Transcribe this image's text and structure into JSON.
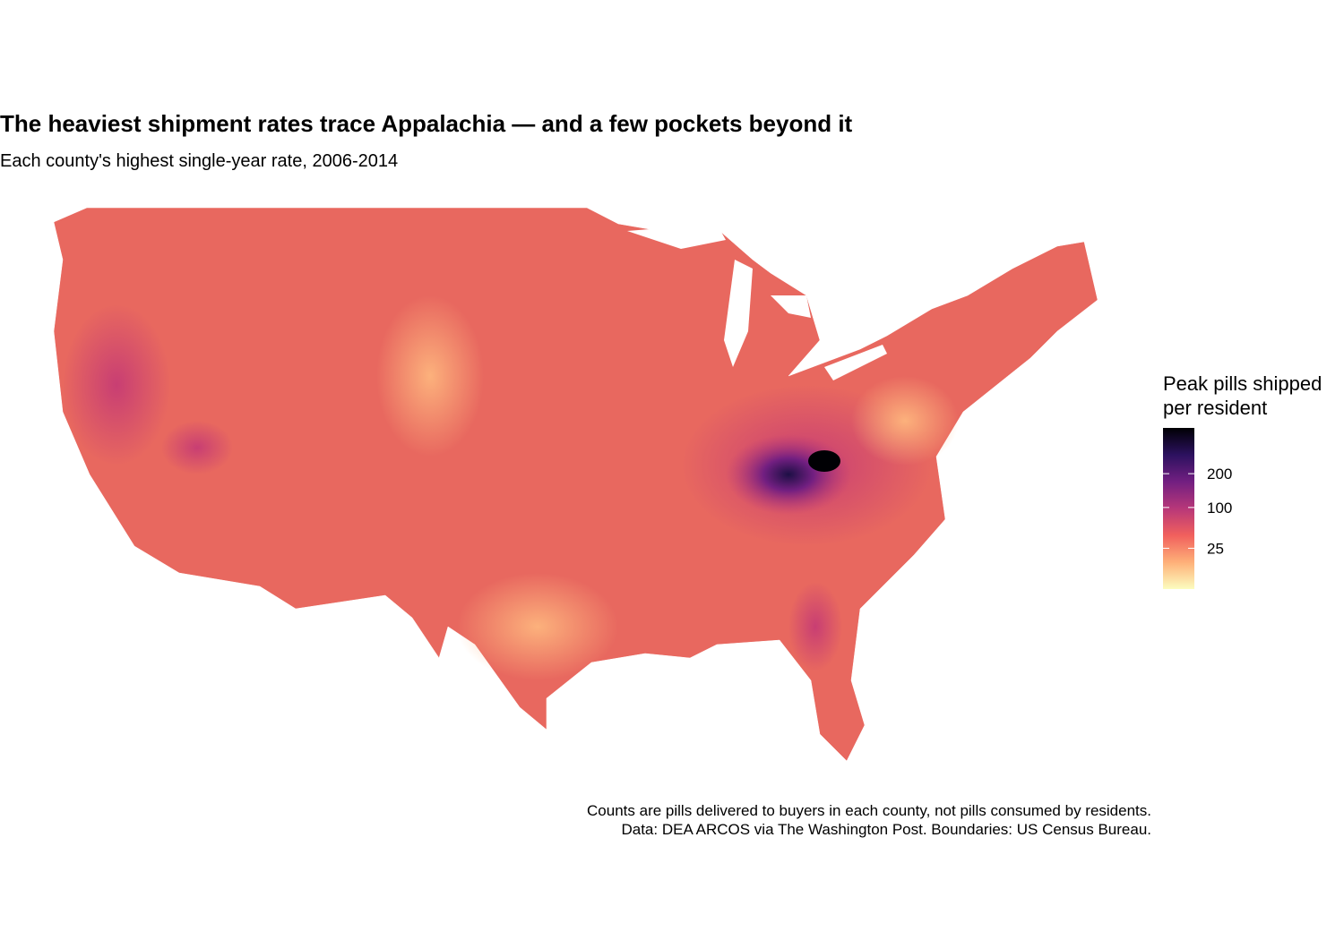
{
  "chart_data": {
    "type": "choropleth",
    "title": "The heaviest shipment rates trace Appalachia — and a few pockets beyond it",
    "subtitle": "Each county's highest single-year rate, 2006-2014",
    "legend_title": [
      "Peak pills shipped",
      "per resident"
    ],
    "scale": "sqrt",
    "limits": [
      0,
      390
    ],
    "ticks": [
      25,
      100,
      200
    ],
    "palette": [
      "#fcfdbf",
      "#feb078",
      "#f1605d",
      "#b73779",
      "#721f81",
      "#2c115f",
      "#000004"
    ],
    "caption": [
      "Counts are pills delivered to buyers in each county, not pills consumed by residents.",
      "Data: DEA ARCOS via The Washington Post. Boundaries: US Census Bureau."
    ]
  }
}
